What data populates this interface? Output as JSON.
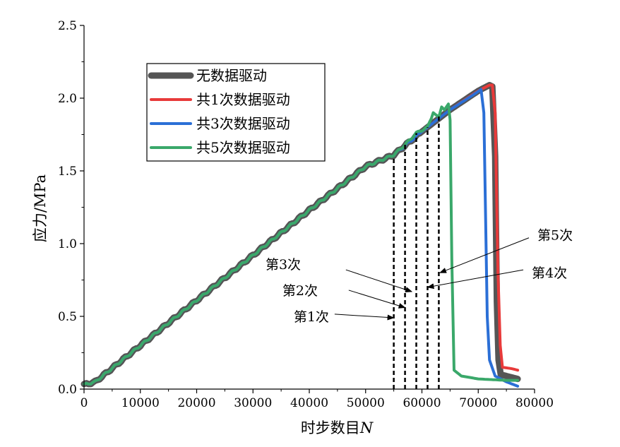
{
  "chart_data": {
    "type": "line",
    "xlabel": "时步数目",
    "xlabel_italic": "N",
    "ylabel": "应力/MPa",
    "xlim": [
      0,
      80000
    ],
    "ylim": [
      0,
      2.5
    ],
    "x_ticks": [
      0,
      10000,
      20000,
      30000,
      40000,
      50000,
      60000,
      70000,
      80000
    ],
    "x_tick_labels": [
      "0",
      "10000",
      "20000",
      "30000",
      "40000",
      "50000",
      "60000",
      "70000",
      "80000"
    ],
    "y_ticks": [
      0,
      0.5,
      1.0,
      1.5,
      2.0,
      2.5
    ],
    "y_tick_labels": [
      "0.0",
      "0.5",
      "1.0",
      "1.5",
      "2.0",
      "2.5"
    ],
    "grid": false,
    "legend_position": "upper-left",
    "series": [
      {
        "name": "无数据驱动",
        "color": "#555555",
        "x": [
          0,
          2000,
          10000,
          20000,
          30000,
          40000,
          50000,
          55000,
          60000,
          65000,
          70000,
          72000,
          72500,
          73000,
          73300,
          73600,
          74000,
          76000,
          77000
        ],
        "y": [
          0.03,
          0.05,
          0.3,
          0.61,
          0.92,
          1.23,
          1.53,
          1.61,
          1.77,
          1.92,
          2.05,
          2.09,
          2.08,
          1.6,
          0.6,
          0.2,
          0.1,
          0.08,
          0.07
        ]
      },
      {
        "name": "共1次数据驱动",
        "color": "#e83a3a",
        "x": [
          0,
          2000,
          10000,
          20000,
          30000,
          40000,
          50000,
          55000,
          60000,
          65000,
          70000,
          72000,
          72500,
          73000,
          73500,
          73900,
          74300,
          76000,
          77000
        ],
        "y": [
          0.03,
          0.05,
          0.3,
          0.61,
          0.92,
          1.23,
          1.53,
          1.61,
          1.77,
          1.92,
          2.05,
          2.09,
          2.09,
          1.9,
          0.8,
          0.3,
          0.15,
          0.14,
          0.13
        ]
      },
      {
        "name": "共3次数据驱动",
        "color": "#2b6fd6",
        "x": [
          0,
          2000,
          10000,
          20000,
          30000,
          40000,
          50000,
          55000,
          60000,
          65000,
          69000,
          70500,
          71000,
          71300,
          71600,
          72000,
          73000,
          75000,
          77000
        ],
        "y": [
          0.03,
          0.05,
          0.3,
          0.61,
          0.92,
          1.23,
          1.53,
          1.61,
          1.77,
          1.92,
          2.02,
          2.06,
          1.9,
          1.2,
          0.5,
          0.2,
          0.09,
          0.05,
          0.02
        ]
      },
      {
        "name": "共5次数据驱动",
        "color": "#3aa86a",
        "x": [
          0,
          2000,
          10000,
          20000,
          30000,
          40000,
          50000,
          55000,
          57000,
          59000,
          61000,
          62000,
          63000,
          63500,
          64000,
          64700,
          65000,
          65300,
          65700,
          67000,
          70000,
          75000,
          77000
        ],
        "y": [
          0.03,
          0.05,
          0.3,
          0.61,
          0.92,
          1.23,
          1.53,
          1.61,
          1.68,
          1.76,
          1.8,
          1.9,
          1.87,
          1.94,
          1.92,
          1.96,
          1.85,
          0.9,
          0.13,
          0.09,
          0.07,
          0.06,
          0.06
        ]
      }
    ],
    "vlines": {
      "color": "#000000",
      "style": "dashed",
      "x": [
        55000,
        57000,
        59000,
        61000,
        63000
      ],
      "y_top": [
        1.6,
        1.68,
        1.76,
        1.8,
        1.88
      ]
    },
    "annotations": [
      {
        "text": "第1次",
        "text_x": 43500,
        "text_y": 0.5,
        "arrow_from": [
          44500,
          0.515
        ],
        "arrow_to": [
          55000,
          0.49
        ]
      },
      {
        "text": "第2次",
        "text_x": 41500,
        "text_y": 0.68,
        "arrow_from": [
          47000,
          0.68
        ],
        "arrow_to": [
          57000,
          0.56
        ]
      },
      {
        "text": "第3次",
        "text_x": 38500,
        "text_y": 0.86,
        "arrow_from": [
          46500,
          0.82
        ],
        "arrow_to": [
          58200,
          0.67
        ]
      },
      {
        "text": "第4次",
        "text_x": 79500,
        "text_y": 0.8,
        "arrow_from": [
          78000,
          0.82
        ],
        "arrow_to": [
          61000,
          0.7
        ]
      },
      {
        "text": "第5次",
        "text_x": 80500,
        "text_y": 1.06,
        "arrow_from": [
          79000,
          1.04
        ],
        "arrow_to": [
          63200,
          0.8
        ]
      }
    ]
  }
}
